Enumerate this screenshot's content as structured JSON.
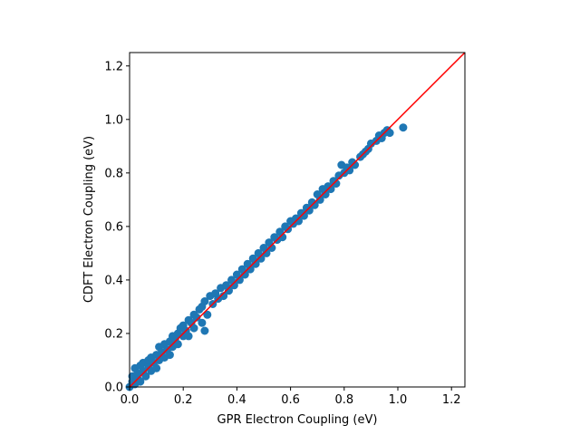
{
  "chart_data": {
    "type": "scatter",
    "title": "",
    "xlabel": "GPR Electron Coupling (eV)",
    "ylabel": "CDFT Electron Coupling (eV)",
    "xlim": [
      0,
      1.25
    ],
    "ylim": [
      0,
      1.25
    ],
    "xticks": [
      "0.0",
      "0.2",
      "0.4",
      "0.6",
      "0.8",
      "1.0",
      "1.2"
    ],
    "yticks": [
      "0.0",
      "0.2",
      "0.4",
      "0.6",
      "0.8",
      "1.0",
      "1.2"
    ],
    "tick_values": [
      0,
      0.2,
      0.4,
      0.6,
      0.8,
      1.0,
      1.2
    ],
    "grid": false,
    "reference_line": {
      "name": "y = x",
      "color": "#ff0000",
      "from": [
        0,
        0
      ],
      "to": [
        1.25,
        1.25
      ]
    },
    "series": [
      {
        "color": "#1f77b4",
        "points": [
          [
            0.0,
            0.0
          ],
          [
            0.01,
            0.02
          ],
          [
            0.01,
            0.04
          ],
          [
            0.02,
            0.01
          ],
          [
            0.02,
            0.07
          ],
          [
            0.03,
            0.03
          ],
          [
            0.03,
            0.05
          ],
          [
            0.04,
            0.08
          ],
          [
            0.04,
            0.02
          ],
          [
            0.05,
            0.06
          ],
          [
            0.05,
            0.09
          ],
          [
            0.06,
            0.04
          ],
          [
            0.07,
            0.08
          ],
          [
            0.07,
            0.1
          ],
          [
            0.08,
            0.06
          ],
          [
            0.08,
            0.11
          ],
          [
            0.09,
            0.09
          ],
          [
            0.1,
            0.07
          ],
          [
            0.1,
            0.12
          ],
          [
            0.11,
            0.15
          ],
          [
            0.11,
            0.1
          ],
          [
            0.12,
            0.13
          ],
          [
            0.13,
            0.11
          ],
          [
            0.13,
            0.16
          ],
          [
            0.14,
            0.14
          ],
          [
            0.15,
            0.12
          ],
          [
            0.15,
            0.17
          ],
          [
            0.16,
            0.19
          ],
          [
            0.16,
            0.15
          ],
          [
            0.17,
            0.18
          ],
          [
            0.18,
            0.16
          ],
          [
            0.18,
            0.2
          ],
          [
            0.19,
            0.22
          ],
          [
            0.2,
            0.19
          ],
          [
            0.2,
            0.23
          ],
          [
            0.21,
            0.21
          ],
          [
            0.22,
            0.25
          ],
          [
            0.22,
            0.19
          ],
          [
            0.23,
            0.24
          ],
          [
            0.24,
            0.27
          ],
          [
            0.24,
            0.22
          ],
          [
            0.25,
            0.26
          ],
          [
            0.26,
            0.29
          ],
          [
            0.27,
            0.24
          ],
          [
            0.27,
            0.3
          ],
          [
            0.28,
            0.32
          ],
          [
            0.28,
            0.21
          ],
          [
            0.29,
            0.27
          ],
          [
            0.3,
            0.34
          ],
          [
            0.31,
            0.31
          ],
          [
            0.32,
            0.35
          ],
          [
            0.33,
            0.33
          ],
          [
            0.34,
            0.37
          ],
          [
            0.35,
            0.34
          ],
          [
            0.36,
            0.38
          ],
          [
            0.37,
            0.36
          ],
          [
            0.38,
            0.4
          ],
          [
            0.39,
            0.38
          ],
          [
            0.4,
            0.42
          ],
          [
            0.41,
            0.4
          ],
          [
            0.42,
            0.44
          ],
          [
            0.43,
            0.42
          ],
          [
            0.44,
            0.46
          ],
          [
            0.45,
            0.44
          ],
          [
            0.46,
            0.48
          ],
          [
            0.47,
            0.46
          ],
          [
            0.48,
            0.5
          ],
          [
            0.49,
            0.48
          ],
          [
            0.5,
            0.52
          ],
          [
            0.51,
            0.5
          ],
          [
            0.52,
            0.54
          ],
          [
            0.53,
            0.52
          ],
          [
            0.54,
            0.56
          ],
          [
            0.55,
            0.55
          ],
          [
            0.56,
            0.58
          ],
          [
            0.57,
            0.56
          ],
          [
            0.58,
            0.6
          ],
          [
            0.59,
            0.59
          ],
          [
            0.6,
            0.62
          ],
          [
            0.61,
            0.61
          ],
          [
            0.62,
            0.63
          ],
          [
            0.63,
            0.62
          ],
          [
            0.64,
            0.65
          ],
          [
            0.65,
            0.64
          ],
          [
            0.66,
            0.67
          ],
          [
            0.67,
            0.66
          ],
          [
            0.68,
            0.69
          ],
          [
            0.69,
            0.68
          ],
          [
            0.7,
            0.72
          ],
          [
            0.71,
            0.7
          ],
          [
            0.72,
            0.74
          ],
          [
            0.73,
            0.72
          ],
          [
            0.74,
            0.75
          ],
          [
            0.75,
            0.74
          ],
          [
            0.76,
            0.77
          ],
          [
            0.77,
            0.76
          ],
          [
            0.78,
            0.79
          ],
          [
            0.79,
            0.83
          ],
          [
            0.8,
            0.8
          ],
          [
            0.81,
            0.82
          ],
          [
            0.82,
            0.81
          ],
          [
            0.83,
            0.84
          ],
          [
            0.84,
            0.83
          ],
          [
            0.86,
            0.86
          ],
          [
            0.87,
            0.87
          ],
          [
            0.88,
            0.88
          ],
          [
            0.89,
            0.89
          ],
          [
            0.9,
            0.91
          ],
          [
            0.92,
            0.92
          ],
          [
            0.93,
            0.94
          ],
          [
            0.94,
            0.93
          ],
          [
            0.95,
            0.95
          ],
          [
            0.96,
            0.96
          ],
          [
            0.97,
            0.95
          ],
          [
            1.02,
            0.97
          ]
        ]
      }
    ]
  }
}
